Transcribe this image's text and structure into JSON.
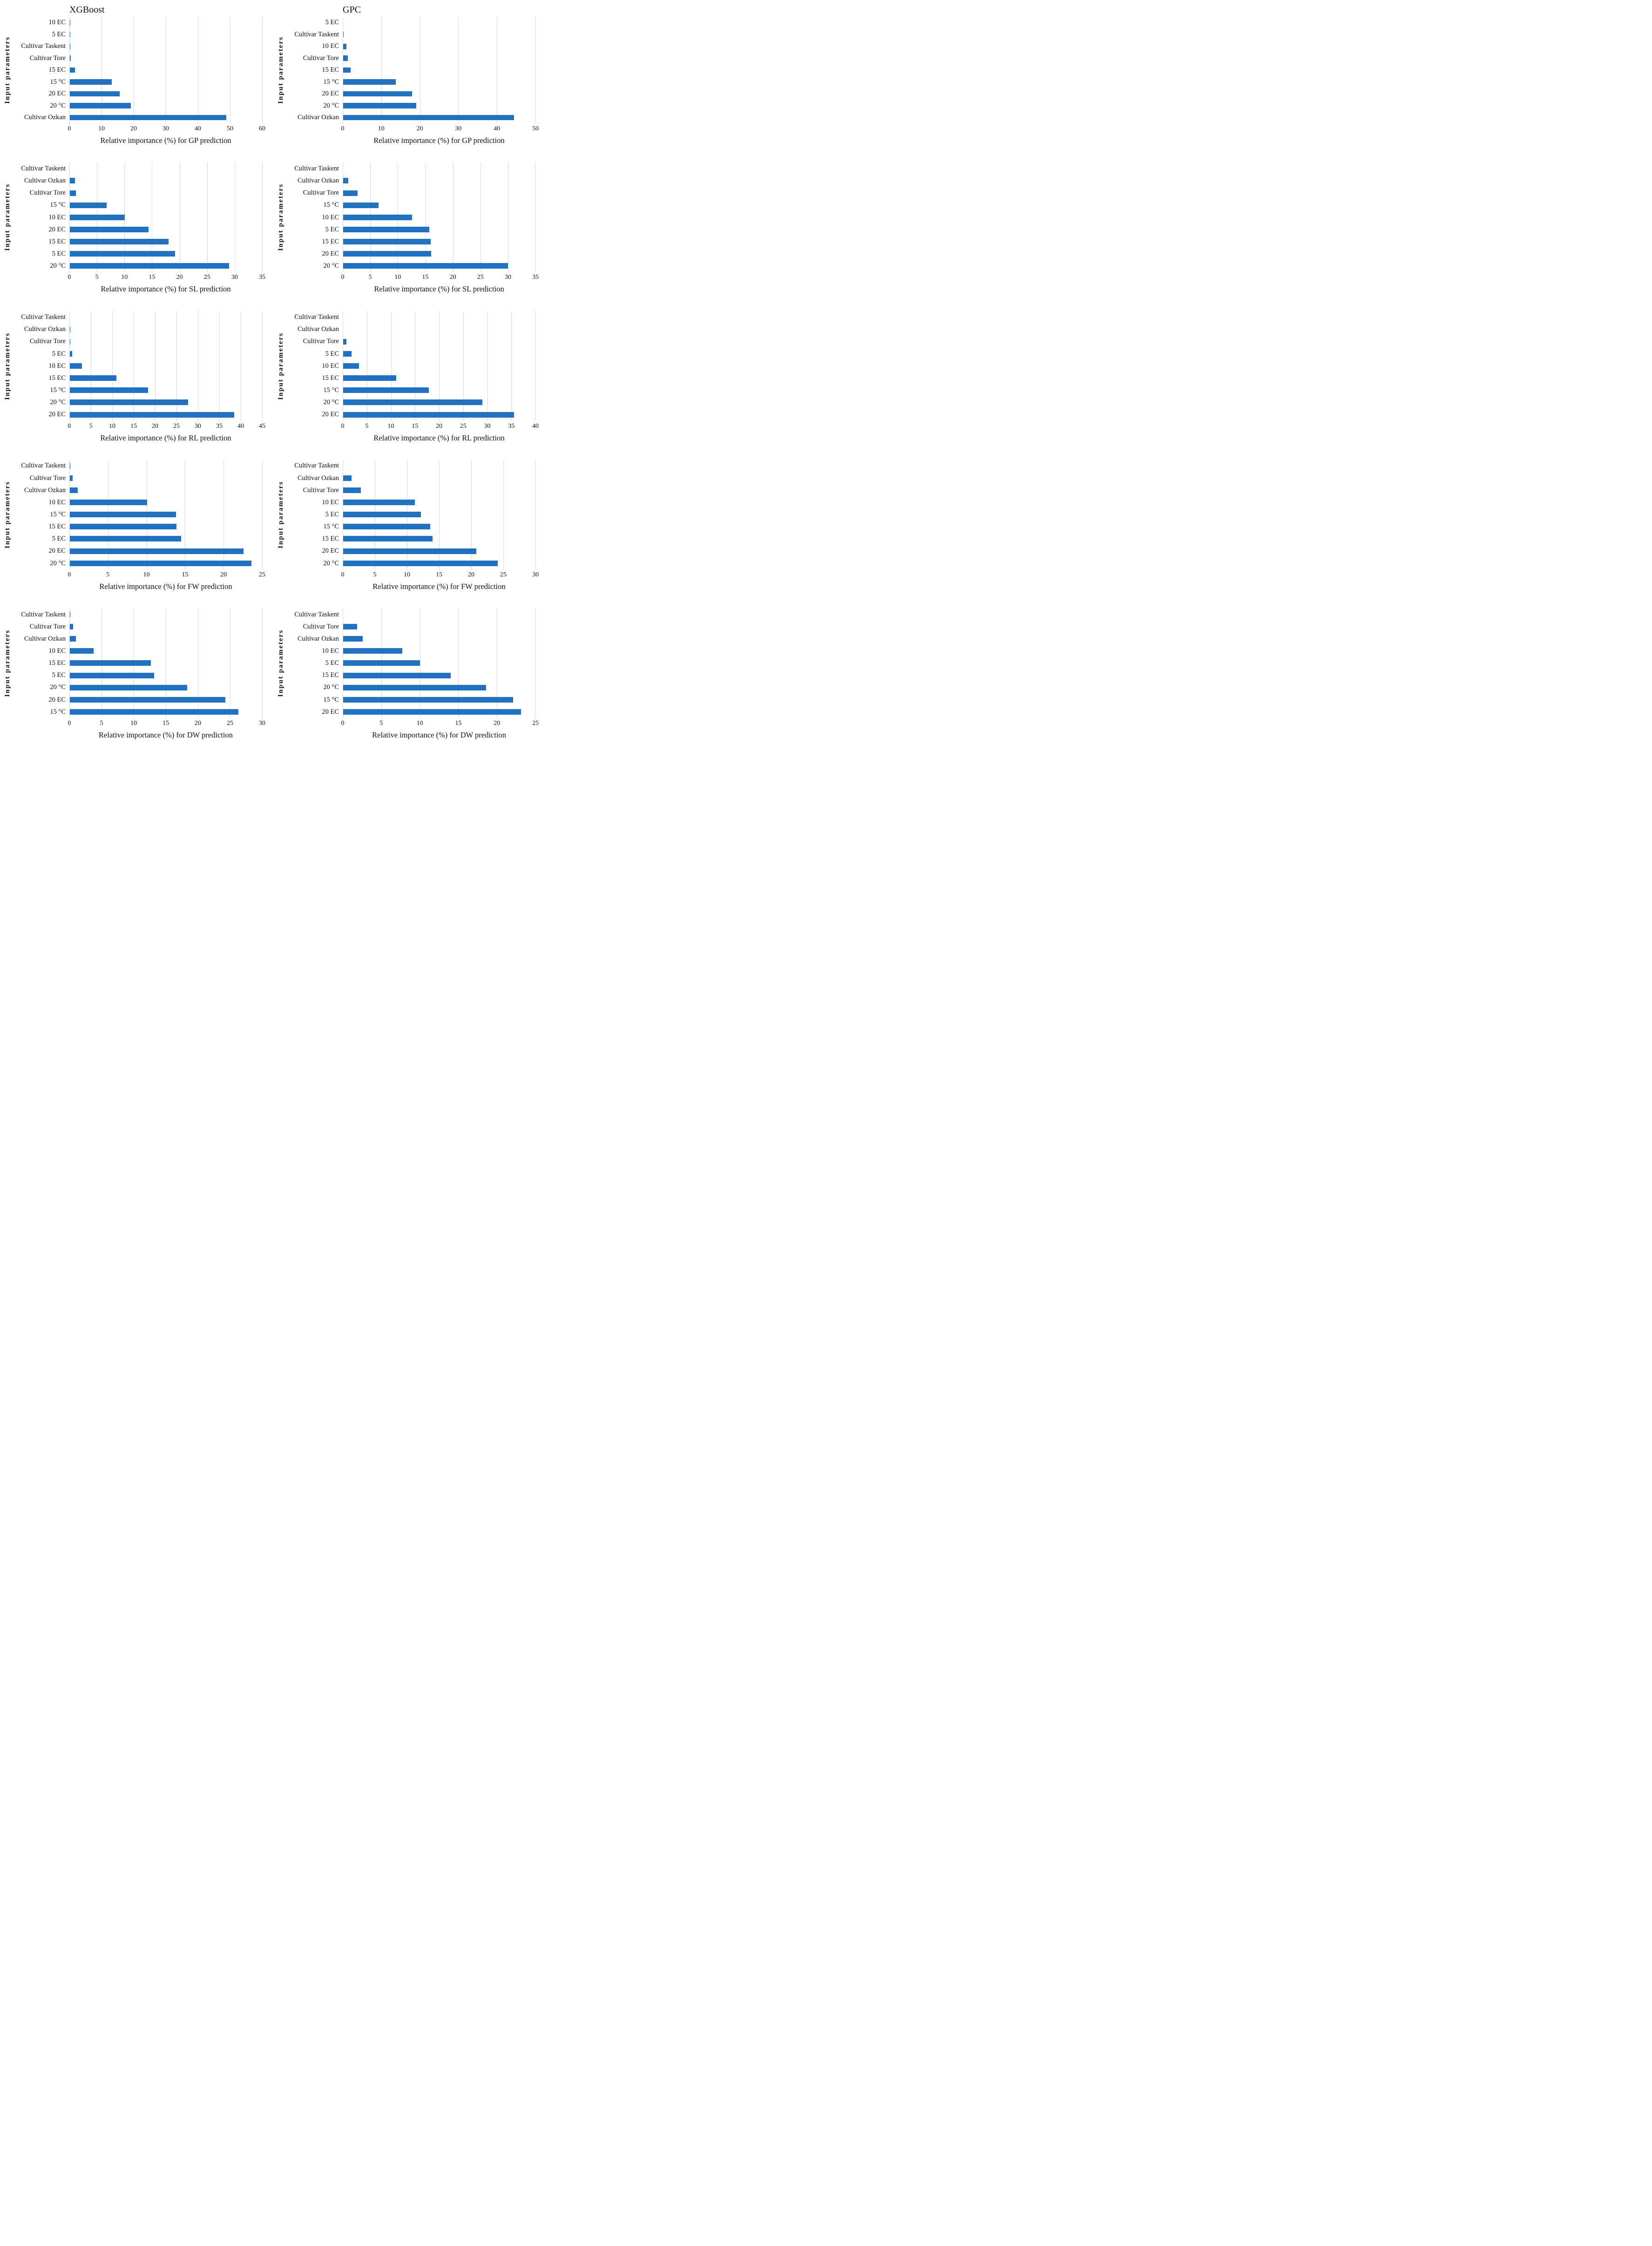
{
  "colors": {
    "bar": "#2272c3",
    "gridline": "#d6d6d6",
    "text": "#111111"
  },
  "figure": {
    "columns": 2,
    "rows": 5,
    "shared_ylabel": "Input parameters"
  },
  "chart_data": [
    {
      "id": "xgboost-gp",
      "type": "bar",
      "title": "XGBoost",
      "xlabel": "Relative importance (%) for GP prediction",
      "ylabel": "Input parameters",
      "xlim": [
        0,
        60
      ],
      "xstep": 10,
      "grid": true,
      "legend": "none",
      "categories": [
        "10 EC",
        "5 EC",
        "Cultivar Taskent",
        "Cultivar Tore",
        "15 EC",
        "15 °C",
        "20 EC",
        "20 °C",
        "Cultivar Ozkan"
      ],
      "values": [
        0.3,
        0.25,
        0.2,
        0.5,
        1.7,
        13.2,
        15.6,
        19.1,
        48.9
      ]
    },
    {
      "id": "gpc-gp",
      "type": "bar",
      "title": "GPC",
      "xlabel": "Relative importance (%) for GP prediction",
      "ylabel": "Input parameters",
      "xlim": [
        0,
        50
      ],
      "xstep": 10,
      "grid": true,
      "legend": "none",
      "categories": [
        "5 EC",
        "Cultivar Taskent",
        "10 EC",
        "Cultivar Tore",
        "15 EC",
        "15 °C",
        "20 EC",
        "20 °C",
        "Cultivar Ozkan"
      ],
      "values": [
        0.05,
        0.2,
        1.0,
        1.3,
        2.0,
        13.8,
        18.0,
        19.1,
        44.5
      ]
    },
    {
      "id": "xgboost-sl",
      "type": "bar",
      "title": "",
      "xlabel": "Relative importance (%) for SL prediction",
      "ylabel": "Input parameters",
      "xlim": [
        0,
        35
      ],
      "xstep": 5,
      "grid": true,
      "legend": "none",
      "categories": [
        "Cultivar Taskent",
        "Cultivar Ozkan",
        "Cultivar Tore",
        "15 °C",
        "10 EC",
        "20 EC",
        "15 EC",
        "5 EC",
        "20 °C"
      ],
      "values": [
        0.05,
        1.0,
        1.2,
        6.8,
        10.1,
        14.4,
        18.0,
        19.2,
        29.0
      ]
    },
    {
      "id": "gpc-sl",
      "type": "bar",
      "title": "",
      "xlabel": "Relative importance (%) for SL prediction",
      "ylabel": "Input parameters",
      "xlim": [
        0,
        35
      ],
      "xstep": 5,
      "grid": true,
      "legend": "none",
      "categories": [
        "Cultivar Taskent",
        "Cultivar Ozkan",
        "Cultivar Tore",
        "15 °C",
        "10 EC",
        "5 EC",
        "15 EC",
        "20 EC",
        "20 °C"
      ],
      "values": [
        0.05,
        1.0,
        2.7,
        6.5,
        12.6,
        15.7,
        16.0,
        16.1,
        30.0
      ]
    },
    {
      "id": "xgboost-rl",
      "type": "bar",
      "title": "",
      "xlabel": "Relative importance (%) for RL prediction",
      "ylabel": "Input parameters",
      "xlim": [
        0,
        45
      ],
      "xstep": 5,
      "grid": true,
      "legend": "none",
      "categories": [
        "Cultivar Taskent",
        "Cultivar Ozkan",
        "Cultivar Tore",
        "5 EC",
        "10 EC",
        "15 EC",
        "15 °C",
        "20 °C",
        "20 EC"
      ],
      "values": [
        0.05,
        0.2,
        0.25,
        0.7,
        2.9,
        11.0,
        18.4,
        27.7,
        38.5
      ]
    },
    {
      "id": "gpc-rl",
      "type": "bar",
      "title": "",
      "xlabel": "Relative importance (%) for RL prediction",
      "ylabel": "Input parameters",
      "xlim": [
        0,
        40
      ],
      "xstep": 5,
      "grid": true,
      "legend": "none",
      "categories": [
        "Cultivar Taskent",
        "Cultivar Ozkan",
        "Cultivar Tore",
        "5 EC",
        "10 EC",
        "15 EC",
        "15 °C",
        "20 °C",
        "20 EC"
      ],
      "values": [
        0,
        0.05,
        0.8,
        1.8,
        3.4,
        11.1,
        17.9,
        29.0,
        35.6
      ]
    },
    {
      "id": "xgboost-fw",
      "type": "bar",
      "title": "",
      "xlabel": "Relative importance (%) for FW prediction",
      "ylabel": "Input parameters",
      "xlim": [
        0,
        25
      ],
      "xstep": 5,
      "grid": true,
      "legend": "none",
      "categories": [
        "Cultivar Taskent",
        "Cultivar Tore",
        "Cultivar Ozkan",
        "10 EC",
        "15 °C",
        "15 EC",
        "5 EC",
        "20 EC",
        "20 °C"
      ],
      "values": [
        0.1,
        0.4,
        1.1,
        10.1,
        13.8,
        13.9,
        14.5,
        22.6,
        23.6
      ]
    },
    {
      "id": "gpc-fw",
      "type": "bar",
      "title": "",
      "xlabel": "Relative importance (%) for FW prediction",
      "ylabel": "Input parameters",
      "xlim": [
        0,
        30
      ],
      "xstep": 5,
      "grid": true,
      "legend": "none",
      "categories": [
        "Cultivar Taskent",
        "Cultivar Ozkan",
        "Cultivar Tore",
        "10 EC",
        "5 EC",
        "15 °C",
        "15 EC",
        "20 EC",
        "20 °C"
      ],
      "values": [
        0.05,
        1.4,
        2.8,
        11.2,
        12.2,
        13.6,
        14.0,
        20.8,
        24.1
      ]
    },
    {
      "id": "xgboost-dw",
      "type": "bar",
      "title": "",
      "xlabel": "Relative importance (%) for DW prediction",
      "ylabel": "Input parameters",
      "xlim": [
        0,
        30
      ],
      "xstep": 5,
      "grid": true,
      "legend": "none",
      "categories": [
        "Cultivar Taskent",
        "Cultivar Tore",
        "Cultivar Ozkan",
        "10 EC",
        "15 EC",
        "5 EC",
        "20 °C",
        "20 EC",
        "15 °C"
      ],
      "values": [
        0.1,
        0.6,
        1.0,
        3.8,
        12.7,
        13.2,
        18.3,
        24.3,
        26.3
      ]
    },
    {
      "id": "gpc-dw",
      "type": "bar",
      "title": "",
      "xlabel": "Relative importance (%) for DW prediction",
      "ylabel": "Input parameters",
      "xlim": [
        0,
        25
      ],
      "xstep": 5,
      "grid": true,
      "legend": "none",
      "categories": [
        "Cultivar Taskent",
        "Cultivar Tore",
        "Cultivar Ozkan",
        "10 EC",
        "5 EC",
        "15 EC",
        "20 °C",
        "15 °C",
        "20 EC"
      ],
      "values": [
        0.05,
        1.9,
        2.6,
        7.7,
        10.0,
        14.0,
        18.6,
        22.1,
        23.1
      ]
    }
  ]
}
